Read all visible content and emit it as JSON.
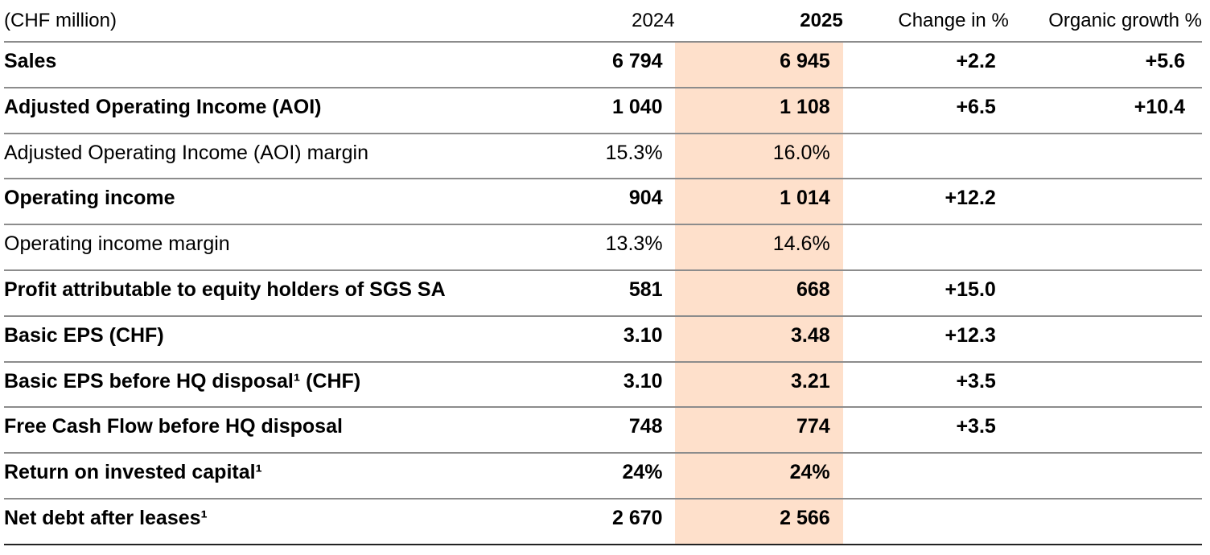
{
  "table": {
    "unit_label": "(CHF million)",
    "columns": {
      "y2024": "2024",
      "y2025": "2025",
      "change": "Change in %",
      "organic": "Organic growth %"
    },
    "highlight_color": "#fee0cb",
    "rule_color": "#8c8c8c",
    "bottom_rule_color": "#222222",
    "rows": [
      {
        "label": "Sales",
        "bold": true,
        "y2024": "6 794",
        "y2025": "6 945",
        "change": "+2.2",
        "organic": "+5.6"
      },
      {
        "label": "Adjusted Operating Income (AOI)",
        "bold": true,
        "y2024": "1 040",
        "y2025": "1 108",
        "change": "+6.5",
        "organic": "+10.4"
      },
      {
        "label": "Adjusted Operating Income (AOI) margin",
        "bold": false,
        "y2024": "15.3%",
        "y2025": "16.0%",
        "change": "",
        "organic": ""
      },
      {
        "label": "Operating income",
        "bold": true,
        "y2024": "904",
        "y2025": "1 014",
        "change": "+12.2",
        "organic": ""
      },
      {
        "label": "Operating income margin",
        "bold": false,
        "y2024": "13.3%",
        "y2025": "14.6%",
        "change": "",
        "organic": ""
      },
      {
        "label": "Profit attributable to equity holders of SGS SA",
        "bold": true,
        "y2024": "581",
        "y2025": "668",
        "change": "+15.0",
        "organic": ""
      },
      {
        "label": "Basic EPS (CHF)",
        "bold": true,
        "y2024": "3.10",
        "y2025": "3.48",
        "change": "+12.3",
        "organic": ""
      },
      {
        "label": "Basic EPS before HQ disposal¹ (CHF)",
        "bold": true,
        "y2024": "3.10",
        "y2025": "3.21",
        "change": "+3.5",
        "organic": ""
      },
      {
        "label": "Free Cash Flow before HQ disposal",
        "bold": true,
        "y2024": "748",
        "y2025": "774",
        "change": "+3.5",
        "organic": ""
      },
      {
        "label": "Return on invested capital¹",
        "bold": true,
        "y2024": "24%",
        "y2025": "24%",
        "change": "",
        "organic": ""
      },
      {
        "label": "Net debt after leases¹",
        "bold": true,
        "y2024": "2 670",
        "y2025": "2 566",
        "change": "",
        "organic": ""
      }
    ]
  }
}
